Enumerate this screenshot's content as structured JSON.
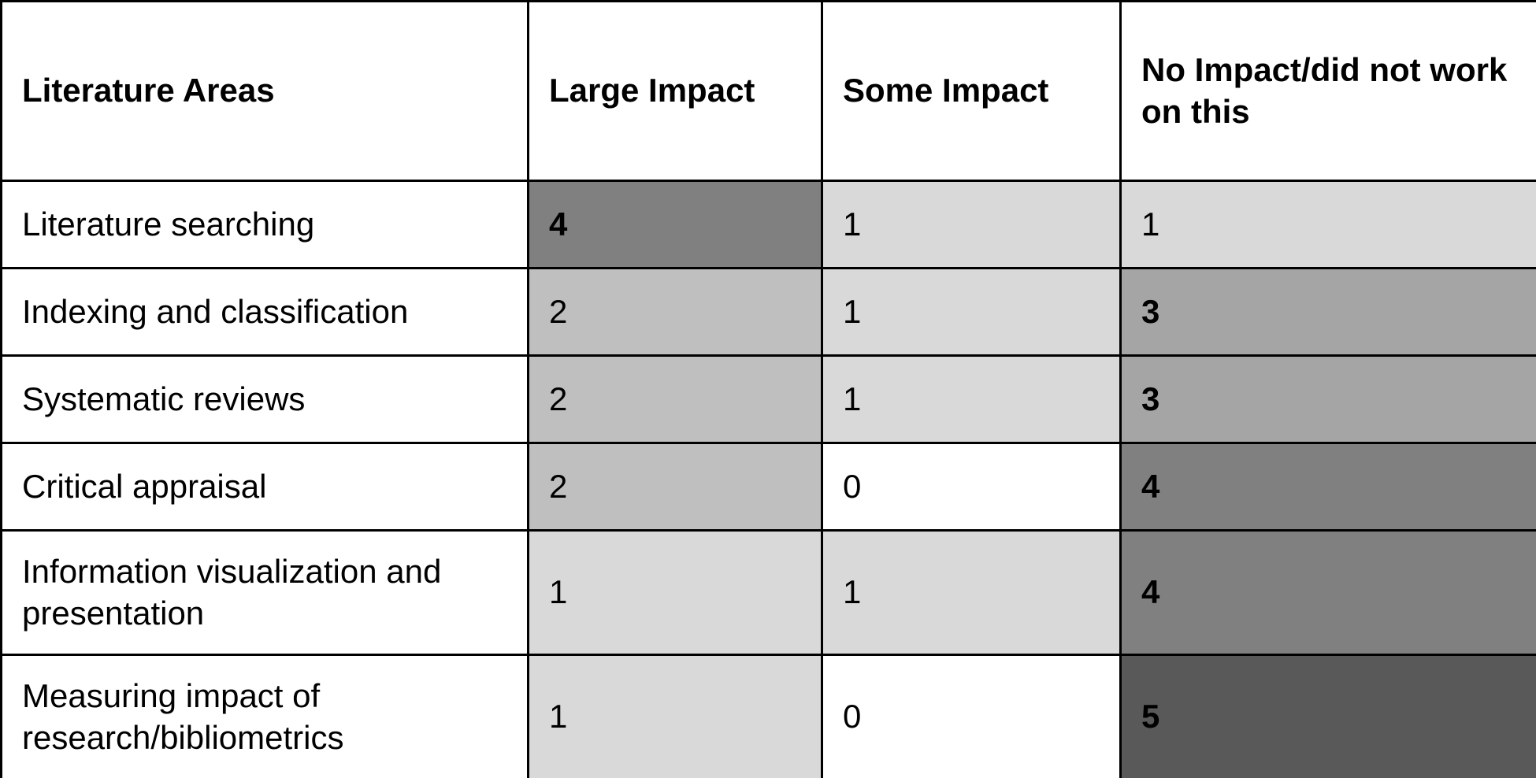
{
  "table": {
    "header": [
      "Literature Areas",
      "Large Impact",
      "Some Impact",
      "No Impact/did not work on this"
    ],
    "rows": [
      [
        "Literature searching",
        4,
        1,
        1
      ],
      [
        "Indexing and classification",
        2,
        1,
        3
      ],
      [
        "Systematic reviews",
        2,
        1,
        3
      ],
      [
        "Critical appraisal",
        2,
        0,
        4
      ],
      [
        "Information visualization and presentation",
        1,
        1,
        4
      ],
      [
        "Measuring impact of research/bibliometrics",
        1,
        0,
        5
      ]
    ]
  },
  "shades": [
    "#ffffff",
    "#d9d9d9",
    "#bfbfbf",
    "#a5a5a5",
    "#808080",
    "#595959"
  ]
}
